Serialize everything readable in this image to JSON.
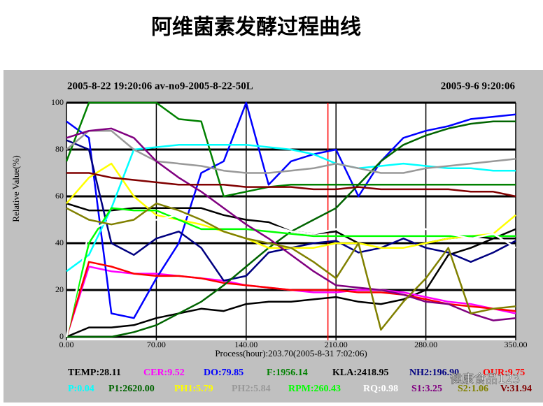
{
  "chart_data": {
    "type": "line",
    "title": "阿维菌素发酵过程曲线",
    "start_label": "2005-8-22 19:20:06 av-no9-2005-8-22-50L",
    "end_label": "2005-9-6 9:20:06",
    "xlabel": "Process(hour):203.70(2005-8-31 7:02:06)",
    "ylabel": "Relative Value(%)",
    "cursor_x": 203.7,
    "cursor_color": "#ff0000",
    "watermark": "健康食品123",
    "grid": true,
    "xlim": [
      0,
      350
    ],
    "ylim": [
      0,
      100
    ],
    "xticks": [
      {
        "value": 0,
        "label": "0.00"
      },
      {
        "value": 70,
        "label": "70.00"
      },
      {
        "value": 140,
        "label": "140.00"
      },
      {
        "value": 210,
        "label": "210.00"
      },
      {
        "value": 280,
        "label": "280.00"
      },
      {
        "value": 350,
        "label": "350.00"
      }
    ],
    "yticks": [
      0,
      20,
      40,
      60,
      80,
      100
    ],
    "x": [
      0,
      17.5,
      35,
      52.5,
      70,
      87.5,
      105,
      122.5,
      140,
      157.5,
      175,
      192.5,
      210,
      227.5,
      245,
      262.5,
      280,
      297.5,
      315,
      332.5,
      350
    ],
    "series": [
      {
        "name": "TEMP:28.11",
        "color": "#000000",
        "values": [
          0,
          4,
          4,
          5,
          8,
          10,
          12,
          11,
          14,
          15,
          15,
          16,
          17,
          15,
          14,
          16,
          20,
          35,
          38,
          42,
          46
        ]
      },
      {
        "name": "CER:9.52",
        "color": "#ff00ff",
        "values": [
          0,
          30,
          28,
          27,
          27,
          26,
          25,
          24,
          22,
          21,
          20,
          19,
          19,
          20,
          20,
          19,
          17,
          15,
          14,
          12,
          10
        ]
      },
      {
        "name": "DO:79.85",
        "color": "#0000ff",
        "values": [
          92,
          85,
          10,
          8,
          25,
          40,
          70,
          75,
          100,
          65,
          75,
          78,
          80,
          60,
          75,
          85,
          88,
          90,
          93,
          94,
          95
        ]
      },
      {
        "name": "F:1956.14",
        "color": "#008000",
        "values": [
          75,
          100,
          100,
          100,
          100,
          93,
          92,
          60,
          62,
          64,
          65,
          65,
          65,
          65,
          65,
          65,
          65,
          65,
          65,
          65,
          65
        ]
      },
      {
        "name": "KLA:2418.95",
        "color": "#000000",
        "values": [
          57,
          54,
          54,
          55,
          55,
          55,
          55,
          52,
          50,
          49,
          45,
          44,
          45,
          40,
          40,
          40,
          40,
          42,
          43,
          42,
          42
        ]
      },
      {
        "name": "NH2:196.90",
        "color": "#000080",
        "values": [
          84,
          80,
          40,
          35,
          42,
          45,
          38,
          24,
          26,
          36,
          38,
          40,
          41,
          36,
          38,
          42,
          38,
          36,
          32,
          36,
          41
        ]
      },
      {
        "name": "OUR:9.75",
        "color": "#ff0000",
        "values": [
          0,
          32,
          30,
          27,
          26,
          26,
          25,
          23,
          22,
          21,
          20,
          20,
          20,
          19,
          19,
          18,
          16,
          14,
          13,
          12,
          11
        ]
      },
      {
        "name": "P:0.04",
        "color": "#00ffff",
        "values": [
          28,
          35,
          55,
          80,
          81,
          82,
          82,
          82,
          82,
          81,
          80,
          78,
          74,
          72,
          73,
          74,
          73,
          72,
          72,
          71,
          71
        ]
      },
      {
        "name": "P1:2620.00",
        "color": "#006400",
        "values": [
          0,
          0,
          0,
          2,
          5,
          10,
          15,
          22,
          30,
          38,
          45,
          50,
          55,
          65,
          75,
          82,
          86,
          89,
          91,
          92,
          92
        ]
      },
      {
        "name": "PH1:5.79",
        "color": "#ffff00",
        "values": [
          57,
          68,
          74,
          60,
          52,
          50,
          48,
          45,
          42,
          38,
          38,
          38,
          40,
          40,
          38,
          38,
          40,
          42,
          43,
          44,
          52
        ]
      },
      {
        "name": "PH2:5.84",
        "color": "#999999",
        "values": [
          80,
          88,
          88,
          80,
          75,
          74,
          73,
          71,
          70,
          70,
          71,
          72,
          74,
          72,
          70,
          70,
          72,
          73,
          74,
          75,
          76
        ]
      },
      {
        "name": "RPM:260.43",
        "color": "#00ff00",
        "values": [
          0,
          40,
          55,
          54,
          54,
          50,
          46,
          46,
          46,
          45,
          44,
          43,
          43,
          43,
          43,
          43,
          43,
          43,
          43,
          43,
          43
        ]
      },
      {
        "name": "RQ:0.98",
        "color": "#ffffff",
        "values": [
          0,
          45,
          50,
          50,
          50,
          52,
          52,
          50,
          48,
          48,
          45,
          44,
          46,
          48,
          46,
          47,
          46,
          44,
          42,
          44,
          38
        ]
      },
      {
        "name": "S1:3.25",
        "color": "#800080",
        "values": [
          85,
          88,
          89,
          85,
          75,
          68,
          62,
          55,
          48,
          42,
          35,
          28,
          22,
          21,
          20,
          18,
          15,
          14,
          10,
          7,
          8
        ]
      },
      {
        "name": "S2:1.06",
        "color": "#808000",
        "values": [
          55,
          50,
          48,
          50,
          57,
          54,
          50,
          45,
          42,
          40,
          38,
          32,
          25,
          40,
          3,
          15,
          25,
          38,
          10,
          12,
          13
        ]
      },
      {
        "name": "V:31.94",
        "color": "#800000",
        "values": [
          70,
          70,
          68,
          67,
          66,
          65,
          65,
          65,
          64,
          64,
          64,
          63,
          63,
          64,
          63,
          63,
          63,
          63,
          62,
          62,
          60
        ]
      }
    ]
  }
}
